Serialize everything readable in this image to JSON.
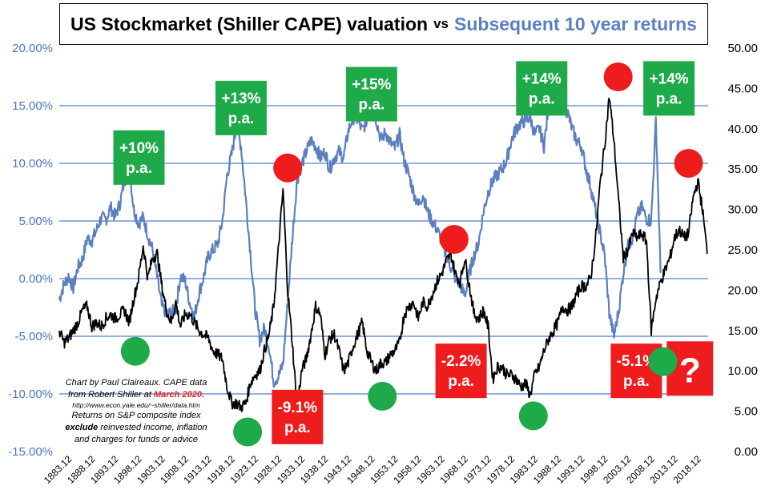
{
  "title": {
    "main": "US Stockmarket (Shiller CAPE) valuation",
    "vs": "vs",
    "sub": "Subsequent 10 year returns"
  },
  "credit": {
    "line1": "Chart by Paul Claireaux. CAPE data",
    "line2_prefix": "from Robert Shiller at ",
    "line2_date": "March 2020.",
    "url": "http://www.econ.yale.edu/~shiller/data.htm",
    "line4": "Returns on S&P composite index",
    "line5_bold": "exclude",
    "line5_rest": " reinvested income, inflation",
    "line6": "and charges for funds or advice"
  },
  "colors": {
    "returns_line": "#5b7fbf",
    "cape_line": "#000000",
    "gridline": "#4f7fd0",
    "left_axis_text": "#4a76c4",
    "green": "#1faa4a",
    "red": "#ee1c1c"
  },
  "chart_data": {
    "type": "line",
    "title": "US Stockmarket (Shiller CAPE) valuation vs Subsequent 10 year returns",
    "x_tick_labels": [
      "1883.12",
      "1888.12",
      "1893.12",
      "1898.12",
      "1903.12",
      "1908.12",
      "1913.12",
      "1918.12",
      "1923.12",
      "1928.12",
      "1933.12",
      "1938.12",
      "1943.12",
      "1948.12",
      "1953.12",
      "1958.12",
      "1963.12",
      "1968.12",
      "1973.12",
      "1978.12",
      "1983.12",
      "1988.12",
      "1993.12",
      "1998.12",
      "2003.12",
      "2008.12",
      "2013.12",
      "2018.12"
    ],
    "xlim": [
      1881,
      2020.2
    ],
    "left_axis": {
      "ylim": [
        -15,
        20
      ],
      "tick_labels": [
        "-15.00%",
        "-10.00%",
        "-5.00%",
        "0.00%",
        "5.00%",
        "10.00%",
        "15.00%",
        "20.00%"
      ]
    },
    "right_axis": {
      "ylim": [
        0,
        50
      ],
      "tick_labels": [
        "0.00",
        "5.00",
        "10.00",
        "15.00",
        "20.00",
        "25.00",
        "30.00",
        "35.00",
        "40.00",
        "45.00",
        "50.00"
      ]
    },
    "grid": true,
    "series": [
      {
        "axis": "left",
        "color": "blue",
        "x": [
          1881,
          1882,
          1883,
          1884,
          1885,
          1886,
          1887,
          1888,
          1889,
          1890,
          1891,
          1892,
          1893,
          1894,
          1895,
          1896,
          1897,
          1898,
          1899,
          1900,
          1901,
          1902,
          1903,
          1904,
          1905,
          1906,
          1907,
          1908,
          1909,
          1910,
          1911,
          1912,
          1913,
          1914,
          1915,
          1916,
          1917,
          1918,
          1919,
          1920,
          1921,
          1922,
          1923,
          1924,
          1925,
          1926,
          1927,
          1928,
          1929,
          1930,
          1931,
          1932,
          1933,
          1934,
          1935,
          1936,
          1937,
          1938,
          1939,
          1940,
          1941,
          1942,
          1943,
          1944,
          1945,
          1946,
          1947,
          1948,
          1949,
          1950,
          1951,
          1952,
          1953,
          1954,
          1955,
          1956,
          1957,
          1958,
          1959,
          1960,
          1961,
          1962,
          1963,
          1964,
          1965,
          1966,
          1967,
          1968,
          1969,
          1970,
          1971,
          1972,
          1973,
          1974,
          1975,
          1976,
          1977,
          1978,
          1979,
          1980,
          1981,
          1982,
          1983,
          1984,
          1985,
          1986,
          1987,
          1988,
          1989,
          1990,
          1991,
          1992,
          1993,
          1994,
          1995,
          1996,
          1997,
          1998,
          1999,
          2000,
          2001,
          2002,
          2003,
          2004,
          2005,
          2006,
          2007,
          2008,
          2009,
          2010
        ],
        "y": [
          -1.8,
          -0.5,
          0.2,
          -0.8,
          1.0,
          1.7,
          3.5,
          3.3,
          4.2,
          5.3,
          5.1,
          6.2,
          5.4,
          6.5,
          8.5,
          9.6,
          6.0,
          4.8,
          5.3,
          3.8,
          2.5,
          0.1,
          -2.4,
          -3.0,
          -3.0,
          -2.6,
          0.2,
          -0.2,
          -2.1,
          -3.3,
          -1.2,
          0.2,
          2.0,
          2.5,
          3.0,
          5.0,
          9.0,
          10.8,
          13.2,
          11.5,
          7.0,
          2.3,
          -2.6,
          -5.3,
          -4.3,
          -5.9,
          -8.9,
          -8.5,
          -7.4,
          -2.0,
          3.5,
          8.5,
          9.9,
          11.0,
          12.0,
          11.5,
          10.5,
          11.0,
          9.5,
          10.5,
          11.0,
          10.5,
          12.8,
          14.0,
          13.8,
          12.8,
          13.8,
          15.0,
          13.8,
          12.0,
          12.7,
          11.8,
          11.3,
          12.5,
          10.2,
          9.0,
          7.5,
          6.3,
          7.3,
          5.8,
          5.0,
          4.3,
          3.3,
          2.0,
          1.0,
          0.0,
          -0.5,
          -1.5,
          0.5,
          2.0,
          3.2,
          5.8,
          7.5,
          8.5,
          9.0,
          9.5,
          10.3,
          12.0,
          13.0,
          13.5,
          13.7,
          14.0,
          12.5,
          13.0,
          11.5,
          15.0,
          16.3,
          16.0,
          15.0,
          14.5,
          13.0,
          12.0,
          11.5,
          9.5,
          8.0,
          6.0,
          4.0,
          2.0,
          -3.0,
          -5.0,
          -2.8,
          0.5,
          2.8,
          3.6,
          5.5,
          6.2,
          5.2,
          5.0,
          13.8,
          0.5
        ]
      },
      {
        "axis": "right",
        "color": "black",
        "x": [
          1881,
          1882,
          1883,
          1884,
          1885,
          1886,
          1887,
          1888,
          1889,
          1890,
          1891,
          1892,
          1893,
          1894,
          1895,
          1896,
          1897,
          1898,
          1899,
          1900,
          1901,
          1902,
          1903,
          1904,
          1905,
          1906,
          1907,
          1908,
          1909,
          1910,
          1911,
          1912,
          1913,
          1914,
          1915,
          1916,
          1917,
          1918,
          1919,
          1920,
          1921,
          1922,
          1923,
          1924,
          1925,
          1926,
          1927,
          1928,
          1929,
          1930,
          1931,
          1932,
          1933,
          1934,
          1935,
          1936,
          1937,
          1938,
          1939,
          1940,
          1941,
          1942,
          1943,
          1944,
          1945,
          1946,
          1947,
          1948,
          1949,
          1950,
          1951,
          1952,
          1953,
          1954,
          1955,
          1956,
          1957,
          1958,
          1959,
          1960,
          1961,
          1962,
          1963,
          1964,
          1965,
          1966,
          1967,
          1968,
          1969,
          1970,
          1971,
          1972,
          1973,
          1974,
          1975,
          1976,
          1977,
          1978,
          1979,
          1980,
          1981,
          1982,
          1983,
          1984,
          1985,
          1986,
          1987,
          1988,
          1989,
          1990,
          1991,
          1992,
          1993,
          1994,
          1995,
          1996,
          1997,
          1998,
          1999,
          2000,
          2001,
          2002,
          2003,
          2004,
          2005,
          2006,
          2007,
          2008,
          2009,
          2010,
          2011,
          2012,
          2013,
          2014,
          2015,
          2016,
          2017,
          2018,
          2019,
          2020
        ],
        "y": [
          15.0,
          13.5,
          14.0,
          15.0,
          16.0,
          17.5,
          18.0,
          15.5,
          16.0,
          15.5,
          16.5,
          17.0,
          16.5,
          17.0,
          17.5,
          16.0,
          19.0,
          21.5,
          25.5,
          21.5,
          24.0,
          24.5,
          20.5,
          17.5,
          16.0,
          18.5,
          15.5,
          17.0,
          17.0,
          16.0,
          15.0,
          14.5,
          14.0,
          12.5,
          12.0,
          11.5,
          8.0,
          6.0,
          6.0,
          5.5,
          6.0,
          8.5,
          9.5,
          10.0,
          12.5,
          14.5,
          18.0,
          25.0,
          32.5,
          20.0,
          13.5,
          5.5,
          10.0,
          11.5,
          14.5,
          18.0,
          17.0,
          12.0,
          14.0,
          14.5,
          12.5,
          10.0,
          11.0,
          13.0,
          14.5,
          16.0,
          12.5,
          11.0,
          10.0,
          11.0,
          11.0,
          12.0,
          12.5,
          13.5,
          17.0,
          18.0,
          18.5,
          16.5,
          18.5,
          18.0,
          19.5,
          21.0,
          22.0,
          23.5,
          24.5,
          22.0,
          21.0,
          24.0,
          20.5,
          17.0,
          16.5,
          17.5,
          15.5,
          9.0,
          10.5,
          10.5,
          9.5,
          9.5,
          9.0,
          8.0,
          8.5,
          7.0,
          9.5,
          10.5,
          12.5,
          14.0,
          15.0,
          16.0,
          18.0,
          17.5,
          18.0,
          19.5,
          20.5,
          20.5,
          21.5,
          26.0,
          33.0,
          38.0,
          44.0,
          38.5,
          31.0,
          24.0,
          25.0,
          27.0,
          26.5,
          27.0,
          26.0,
          15.0,
          19.0,
          21.0,
          22.5,
          24.0,
          26.5,
          27.5,
          26.5,
          27.0,
          31.5,
          33.5,
          30.0,
          24.5
        ]
      }
    ],
    "annotations": {
      "green_boxes": [
        {
          "text": "+10%\np.a.",
          "x": 1898.1,
          "y": 10.5
        },
        {
          "text": "+13%\np.a.",
          "x": 1920.0,
          "y": 14.8
        },
        {
          "text": "+15%\np.a.",
          "x": 1948.0,
          "y": 16.0
        },
        {
          "text": "+14%\np.a.",
          "x": 1984.5,
          "y": 16.5
        },
        {
          "text": "+14%\np.a.",
          "x": 2011.8,
          "y": 16.5
        }
      ],
      "red_boxes": [
        {
          "text": "-9.1%\np.a.",
          "x": 1932.1,
          "y": -12.0
        },
        {
          "text": "-2.2%\np.a.",
          "x": 1967.2,
          "y": -8.0
        },
        {
          "text": "-5.1%\np.a.",
          "x": 2004.8,
          "y": -8.0
        },
        {
          "text": "?",
          "x": 2016.3,
          "y": -7.8
        }
      ],
      "red_dots": [
        {
          "x": 1930.0,
          "y": 9.6
        },
        {
          "x": 1965.7,
          "y": 3.4
        },
        {
          "x": 2000.9,
          "y": 17.5
        },
        {
          "x": 2016.0,
          "y": 10.0
        }
      ],
      "green_dots": [
        {
          "x": 1897.3,
          "y": -6.3
        },
        {
          "x": 1921.4,
          "y": -13.3
        },
        {
          "x": 1950.3,
          "y": -10.2
        },
        {
          "x": 1982.7,
          "y": -11.9
        },
        {
          "x": 2010.5,
          "y": -7.2
        }
      ]
    }
  }
}
